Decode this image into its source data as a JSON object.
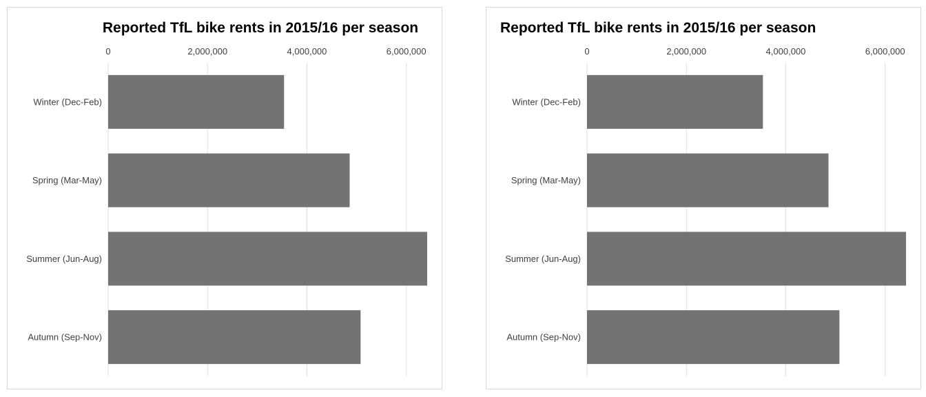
{
  "chart_data": [
    {
      "type": "bar",
      "orientation": "horizontal",
      "title": "Reported TfL bike rents in 2015/16 per season",
      "title_align": "center",
      "categories": [
        "Winter (Dec-Feb)",
        "Spring (Mar-May)",
        "Summer (Jun-Aug)",
        "Autumn (Sep-Nov)"
      ],
      "values": [
        3540000,
        4860000,
        6420000,
        5080000
      ],
      "xlim": [
        0,
        6420000
      ],
      "xticks": [
        0,
        2000000,
        4000000,
        6000000
      ],
      "xtick_labels": [
        "0",
        "2,000,000",
        "4,000,000",
        "6,000,000"
      ],
      "x_axis_position": "top",
      "grid": true,
      "bar_color": "#737373",
      "xlabel": "",
      "ylabel": ""
    },
    {
      "type": "bar",
      "orientation": "horizontal",
      "title": "Reported TfL bike rents in 2015/16 per season",
      "title_align": "left",
      "categories": [
        "Winter (Dec-Feb)",
        "Spring (Mar-May)",
        "Summer (Jun-Aug)",
        "Autumn (Sep-Nov)"
      ],
      "values": [
        3540000,
        4860000,
        6420000,
        5080000
      ],
      "xlim": [
        0,
        6420000
      ],
      "xticks": [
        0,
        2000000,
        4000000,
        6000000
      ],
      "xtick_labels": [
        "0",
        "2,000,000",
        "4,000,000",
        "6,000,000"
      ],
      "x_axis_position": "top",
      "grid": true,
      "bar_color": "#737373",
      "xlabel": "",
      "ylabel": ""
    }
  ]
}
